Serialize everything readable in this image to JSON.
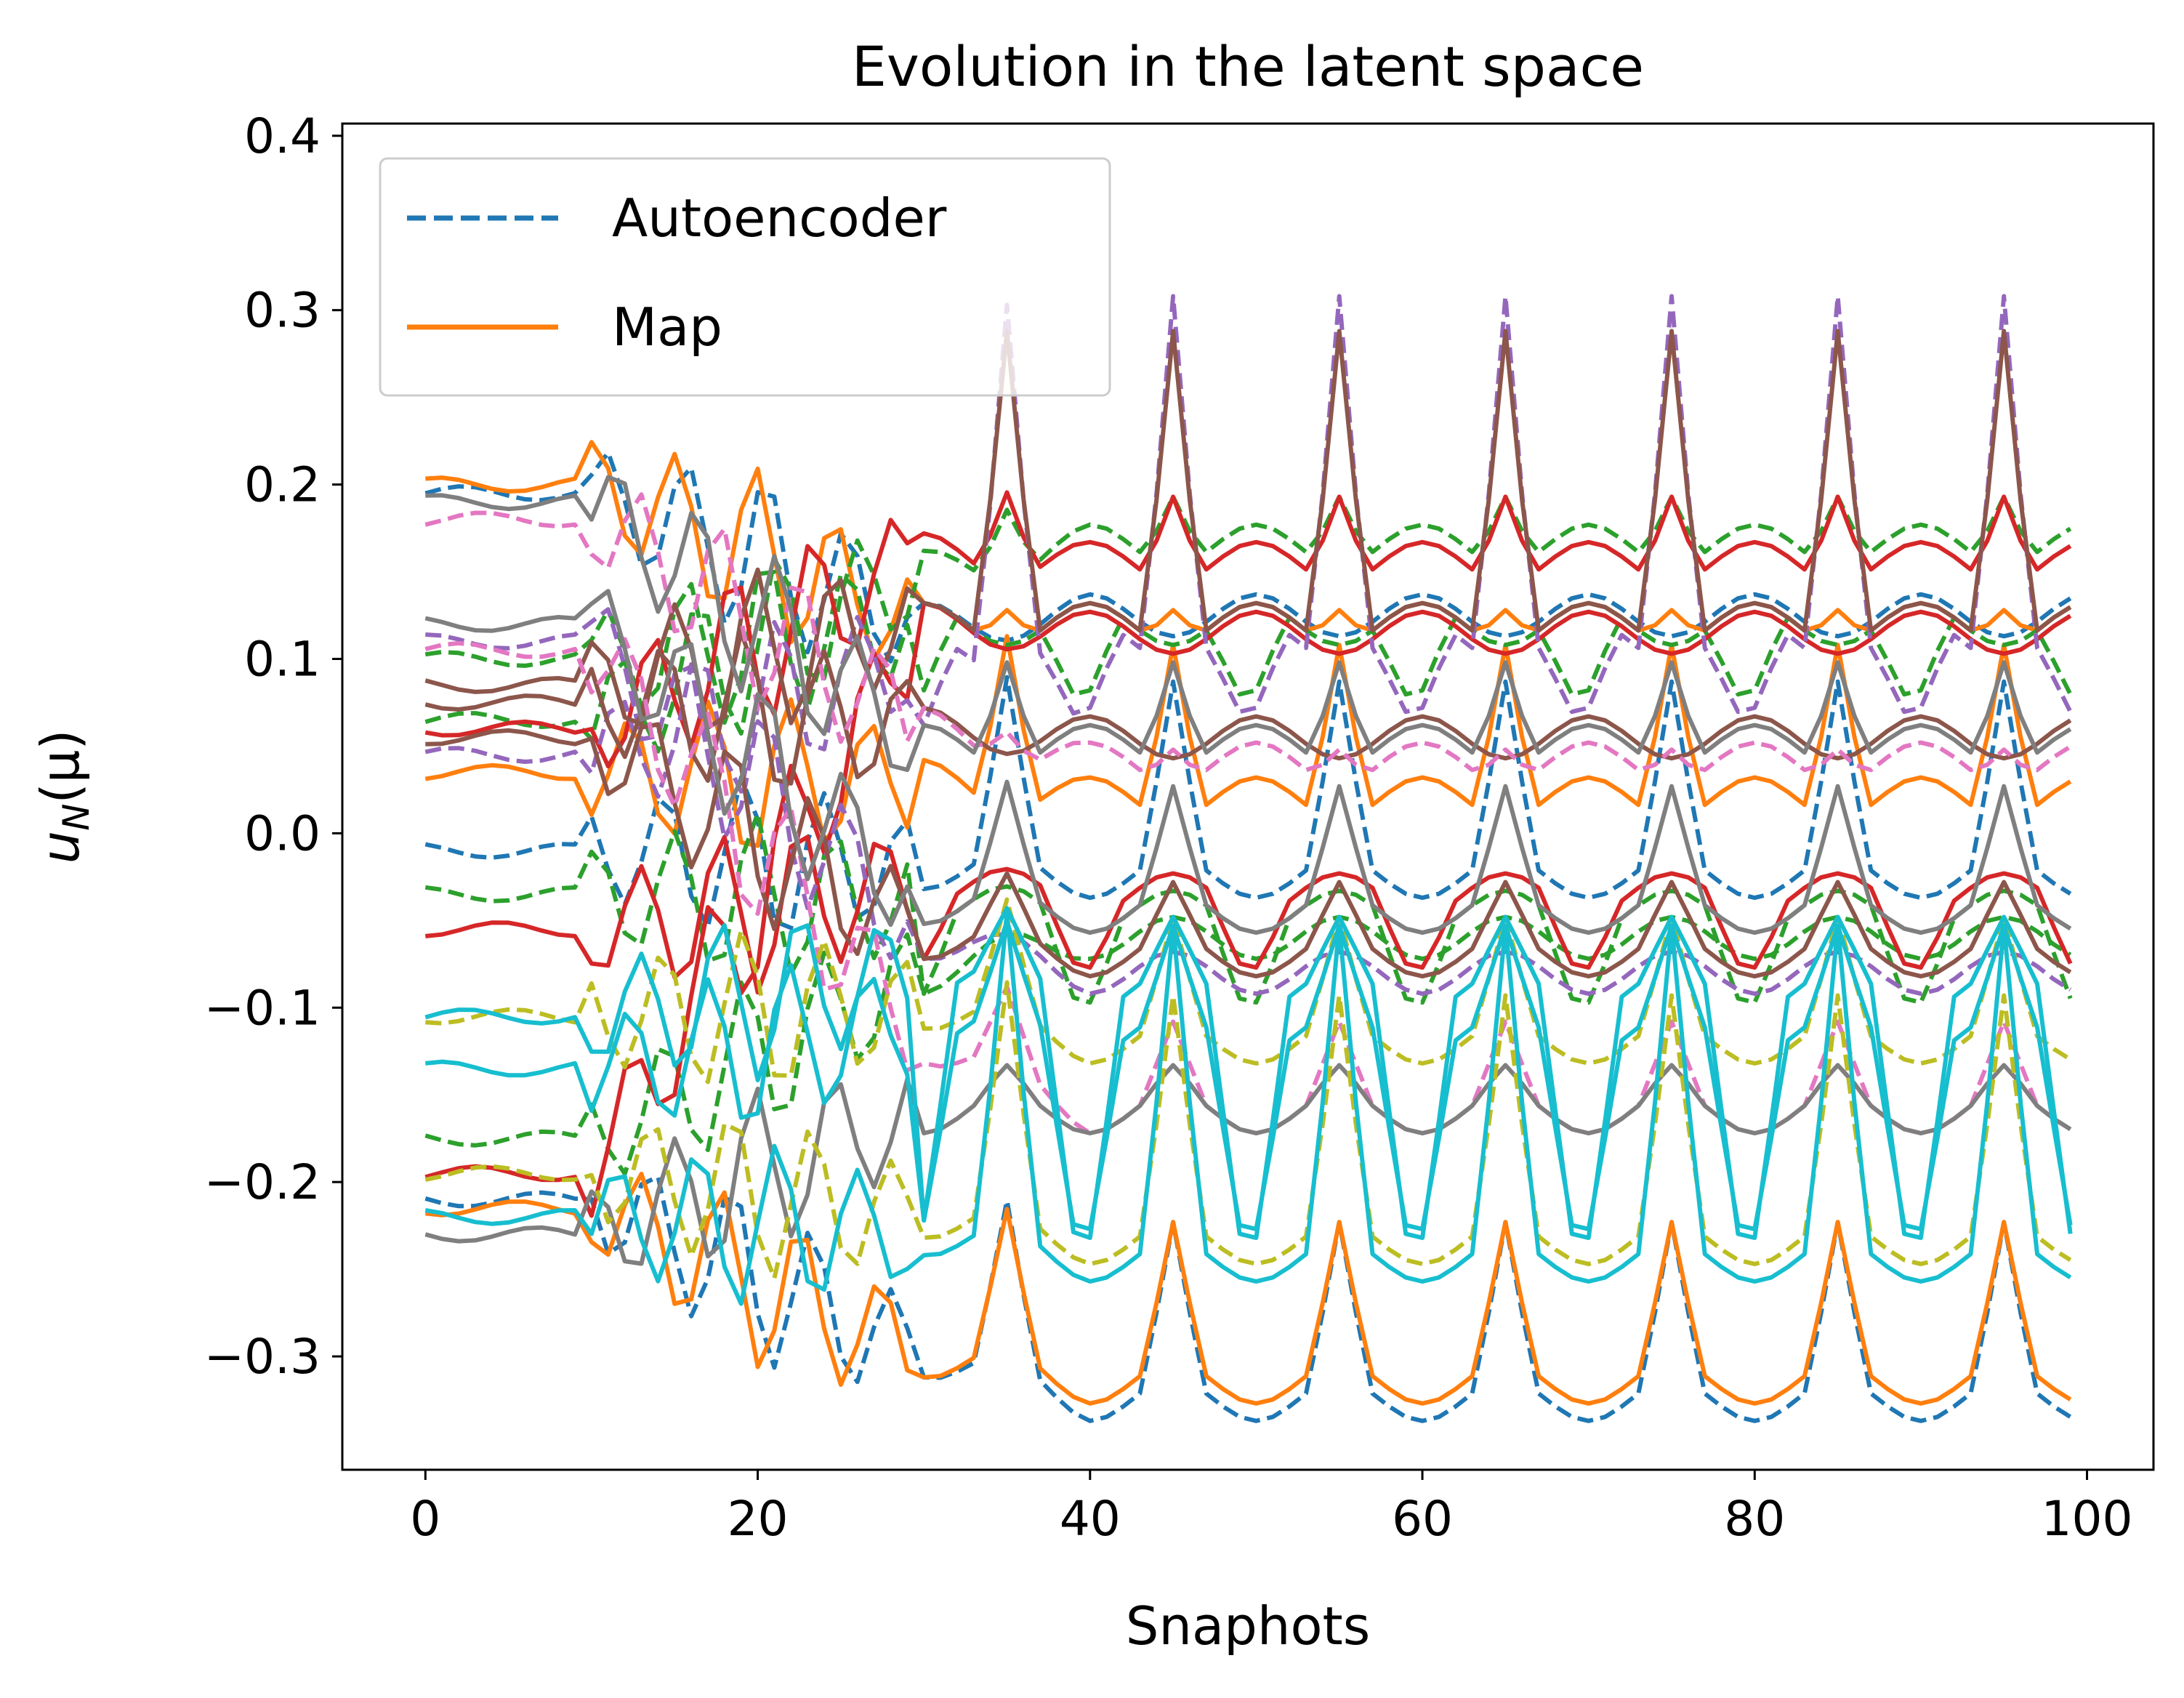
{
  "chart_data": {
    "type": "line",
    "title": "Evolution in the latent space",
    "xlabel": "Snaphots",
    "ylabel_main": "u",
    "ylabel_sub": "N",
    "ylabel_tail": "(μ)",
    "xlim": [
      -5,
      104
    ],
    "ylim": [
      -0.365,
      0.407
    ],
    "x_ticks": [
      0,
      20,
      40,
      60,
      80,
      100
    ],
    "x_tick_labels": [
      "0",
      "20",
      "40",
      "60",
      "80",
      "100"
    ],
    "y_ticks": [
      -0.3,
      -0.2,
      -0.1,
      0.0,
      0.1,
      0.2,
      0.3,
      0.4
    ],
    "y_tick_labels": [
      "−0.3",
      "−0.2",
      "−0.1",
      "0.0",
      "0.1",
      "0.2",
      "0.3",
      "0.4"
    ],
    "grid": false,
    "legend": {
      "position": "upper-left",
      "entries": [
        {
          "label": "Autoencoder",
          "style": "dashed",
          "color": "#1f77b4"
        },
        {
          "label": "Map",
          "style": "solid",
          "color": "#ff7f0e"
        }
      ]
    },
    "series": [
      {
        "style": "dashed",
        "color": "#1f77b4",
        "anchors": {
          "init": 0.195,
          "mid": 0.12,
          "base": 0.125,
          "amp": 0.0,
          "dip": 0.0
        }
      },
      {
        "style": "solid",
        "color": "#ff7f0e",
        "anchors": {
          "init": 0.2,
          "mid": 0.12,
          "base": 0.12,
          "amp": 0.02,
          "dip": 0.0
        }
      },
      {
        "style": "dashed",
        "color": "#1f77b4",
        "anchors": {
          "init": -0.01,
          "mid": -0.02,
          "base": -0.025,
          "amp": 0.1,
          "dip": 0.0
        }
      },
      {
        "style": "dashed",
        "color": "#1f77b4",
        "anchors": {
          "init": -0.21,
          "mid": -0.3,
          "base": -0.325,
          "amp": 0.09,
          "dip": 0.0
        }
      },
      {
        "style": "solid",
        "color": "#ff7f0e",
        "anchors": {
          "init": -0.215,
          "mid": -0.3,
          "base": -0.315,
          "amp": 0.08,
          "dip": 0.0
        }
      },
      {
        "style": "solid",
        "color": "#ff7f0e",
        "anchors": {
          "init": 0.035,
          "mid": 0.03,
          "base": 0.02,
          "amp": 0.1,
          "dip": 0.0
        }
      },
      {
        "style": "dashed",
        "color": "#2ca02c",
        "anchors": {
          "init": 0.065,
          "mid": 0.15,
          "base": 0.165,
          "amp": 0.04,
          "dip": 0.0
        }
      },
      {
        "style": "dashed",
        "color": "#2ca02c",
        "anchors": {
          "init": 0.1,
          "mid": 0.12,
          "base": 0.12,
          "amp": 0.0,
          "dip": -0.05
        }
      },
      {
        "style": "dashed",
        "color": "#2ca02c",
        "anchors": {
          "init": -0.035,
          "mid": -0.04,
          "base": -0.045,
          "amp": 0.0,
          "dip": -0.04
        }
      },
      {
        "style": "dashed",
        "color": "#2ca02c",
        "anchors": {
          "init": -0.175,
          "mid": -0.08,
          "base": -0.06,
          "amp": 0.0,
          "dip": 0.0
        }
      },
      {
        "style": "solid",
        "color": "#d62728",
        "anchors": {
          "init": 0.06,
          "mid": 0.16,
          "base": 0.155,
          "amp": 0.05,
          "dip": 0.0
        }
      },
      {
        "style": "solid",
        "color": "#d62728",
        "anchors": {
          "init": -0.055,
          "mid": -0.03,
          "base": -0.035,
          "amp": 0.0,
          "dip": -0.03
        }
      },
      {
        "style": "solid",
        "color": "#d62728",
        "anchors": {
          "init": -0.195,
          "mid": 0.12,
          "base": 0.115,
          "amp": 0.0,
          "dip": 0.0
        }
      },
      {
        "style": "dashed",
        "color": "#9467bd",
        "anchors": {
          "init": 0.045,
          "mid": 0.1,
          "base": 0.11,
          "amp": 0.21,
          "dip": -0.05
        }
      },
      {
        "style": "dashed",
        "color": "#9467bd",
        "anchors": {
          "init": 0.11,
          "mid": -0.06,
          "base": -0.08,
          "amp": 0.0,
          "dip": 0.0
        }
      },
      {
        "style": "solid",
        "color": "#8c564b",
        "anchors": {
          "init": 0.085,
          "mid": 0.12,
          "base": 0.12,
          "amp": 0.18,
          "dip": 0.0
        }
      },
      {
        "style": "solid",
        "color": "#8c564b",
        "anchors": {
          "init": 0.075,
          "mid": 0.06,
          "base": 0.055,
          "amp": 0.0,
          "dip": 0.0
        }
      },
      {
        "style": "solid",
        "color": "#8c564b",
        "anchors": {
          "init": 0.055,
          "mid": -0.06,
          "base": -0.07,
          "amp": 0.03,
          "dip": 0.0
        }
      },
      {
        "style": "dashed",
        "color": "#e377c2",
        "anchors": {
          "init": 0.18,
          "mid": 0.06,
          "base": 0.04,
          "amp": 0.02,
          "dip": 0.0
        }
      },
      {
        "style": "dashed",
        "color": "#e377c2",
        "anchors": {
          "init": 0.105,
          "mid": -0.12,
          "base": -0.16,
          "amp": 0.04,
          "dip": 0.0
        }
      },
      {
        "style": "solid",
        "color": "#7f7f7f",
        "anchors": {
          "init": 0.19,
          "mid": 0.05,
          "base": 0.05,
          "amp": 0.06,
          "dip": 0.0
        }
      },
      {
        "style": "solid",
        "color": "#7f7f7f",
        "anchors": {
          "init": 0.12,
          "mid": -0.04,
          "base": -0.045,
          "amp": 0.06,
          "dip": 0.0
        }
      },
      {
        "style": "solid",
        "color": "#7f7f7f",
        "anchors": {
          "init": -0.23,
          "mid": -0.16,
          "base": -0.16,
          "amp": 0.015,
          "dip": 0.0
        }
      },
      {
        "style": "dashed",
        "color": "#bcbd22",
        "anchors": {
          "init": -0.105,
          "mid": -0.1,
          "base": -0.12,
          "amp": 0.06,
          "dip": 0.0
        }
      },
      {
        "style": "dashed",
        "color": "#bcbd22",
        "anchors": {
          "init": -0.195,
          "mid": -0.22,
          "base": -0.235,
          "amp": 0.13,
          "dip": 0.0
        }
      },
      {
        "style": "solid",
        "color": "#17becf",
        "anchors": {
          "init": -0.105,
          "mid": -0.08,
          "base": -0.09,
          "amp": 0.03,
          "dip": -0.13
        }
      },
      {
        "style": "solid",
        "color": "#17becf",
        "anchors": {
          "init": -0.135,
          "mid": -0.11,
          "base": -0.115,
          "amp": 0.05,
          "dip": -0.1
        }
      },
      {
        "style": "solid",
        "color": "#17becf",
        "anchors": {
          "init": -0.22,
          "mid": -0.23,
          "base": -0.245,
          "amp": 0.18,
          "dip": 0.0
        }
      }
    ]
  }
}
